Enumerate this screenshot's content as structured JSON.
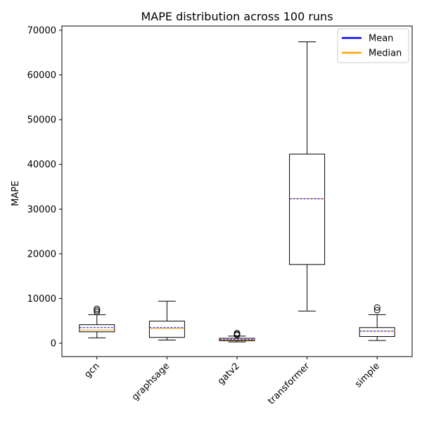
{
  "chart_data": {
    "type": "box",
    "title": "MAPE distribution across 100 runs",
    "xlabel": "",
    "ylabel": "MAPE",
    "ylim": [
      -3000,
      71000
    ],
    "yticks": [
      0,
      10000,
      20000,
      30000,
      40000,
      50000,
      60000,
      70000
    ],
    "ytick_labels": [
      "0",
      "10000",
      "20000",
      "30000",
      "40000",
      "50000",
      "60000",
      "70000"
    ],
    "grid": false,
    "legend_position": "top-right",
    "legend": [
      {
        "label": "Mean",
        "color": "#0000ff"
      },
      {
        "label": "Median",
        "color": "#ffa500"
      }
    ],
    "categories": [
      "gcn",
      "graphsage",
      "gatv2",
      "transformer",
      "simple"
    ],
    "boxes": [
      {
        "name": "gcn",
        "whisker_low": 1200,
        "q1": 2550,
        "median": 2950,
        "mean": 3500,
        "q3": 4150,
        "whisker_high": 6400,
        "outliers": [
          7000,
          7350,
          7700
        ]
      },
      {
        "name": "graphsage",
        "whisker_low": 700,
        "q1": 1300,
        "median": 3300,
        "mean": 3500,
        "q3": 4950,
        "whisker_high": 9400,
        "outliers": []
      },
      {
        "name": "gatv2",
        "whisker_low": 300,
        "q1": 550,
        "median": 750,
        "mean": 850,
        "q3": 1100,
        "whisker_high": 1600,
        "outliers": [
          1800,
          2050,
          2250
        ]
      },
      {
        "name": "transformer",
        "whisker_low": 7200,
        "q1": 17600,
        "median": 32300,
        "mean": 32300,
        "q3": 42300,
        "whisker_high": 67400,
        "outliers": []
      },
      {
        "name": "simple",
        "whisker_low": 600,
        "q1": 1500,
        "median": 2700,
        "mean": 2700,
        "q3": 3500,
        "whisker_high": 6400,
        "outliers": [
          7400,
          8000
        ]
      }
    ]
  },
  "colors": {
    "box": "#000000",
    "mean": "#0000ff",
    "median": "#ffa500"
  }
}
